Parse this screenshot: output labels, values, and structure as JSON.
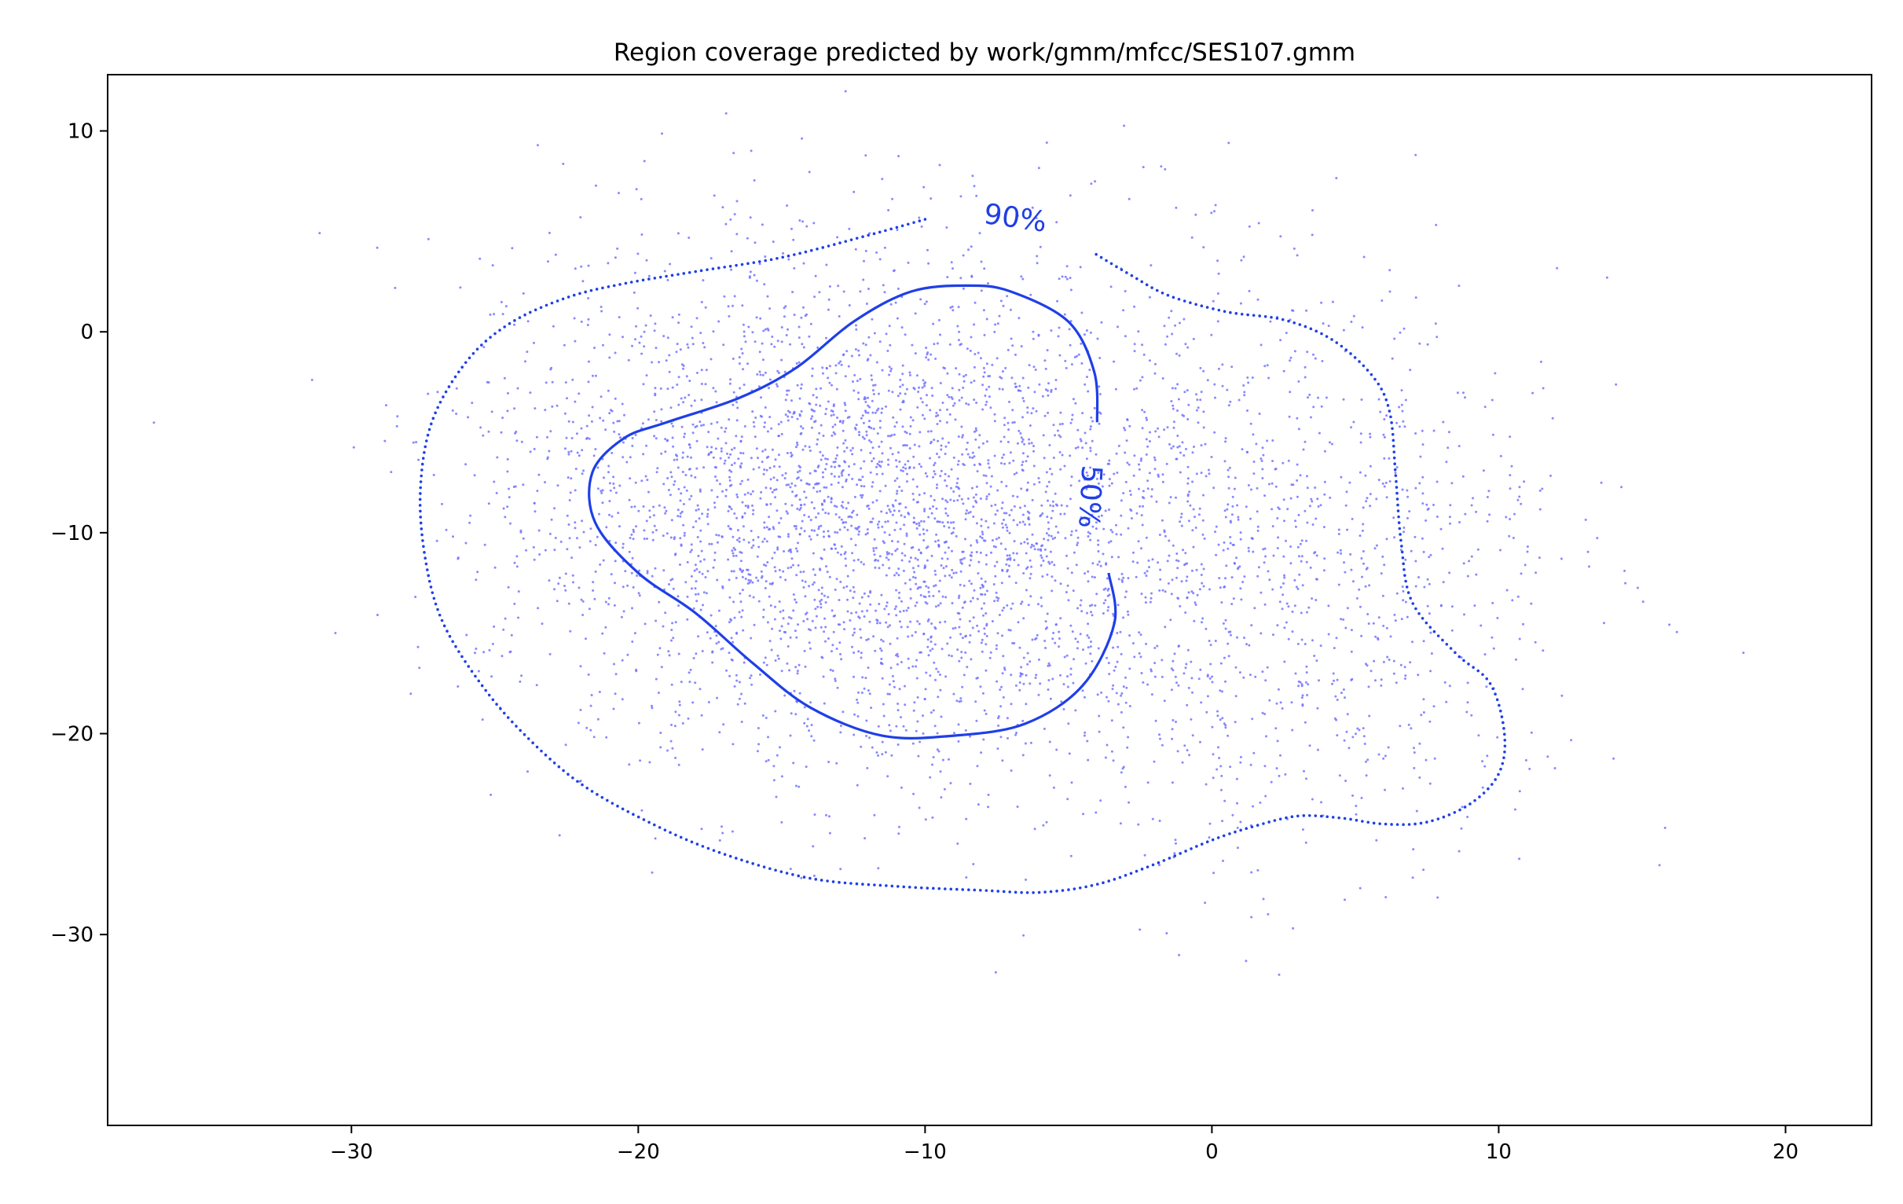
{
  "chart_data": {
    "type": "scatter",
    "title": "Region coverage predicted by work/gmm/mfcc/SES107.gmm",
    "xlabel": "",
    "ylabel": "",
    "xlim": [
      -38.5,
      23.0
    ],
    "ylim": [
      -39.5,
      12.8
    ],
    "x_ticks": [
      -30,
      -20,
      -10,
      0,
      10,
      20
    ],
    "y_ticks": [
      10,
      0,
      -10,
      -20,
      -30
    ],
    "x_tick_labels": [
      "−30",
      "−20",
      "−10",
      "0",
      "10",
      "20"
    ],
    "y_tick_labels": [
      "10",
      "0",
      "−10",
      "−20",
      "−30"
    ],
    "grid": false,
    "legend": "none",
    "point_color": "#6b6bff",
    "contour_color": "#1f3fe6",
    "scatter_summary": {
      "approx_points": 4500,
      "components": [
        {
          "mean": [
            -10.5,
            -9.5
          ],
          "std": [
            5.5,
            6.5
          ],
          "weight": 0.55
        },
        {
          "mean": [
            -18.0,
            -7.0
          ],
          "std": [
            4.5,
            6.0
          ],
          "weight": 0.2
        },
        {
          "mean": [
            2.0,
            -12.0
          ],
          "std": [
            5.0,
            7.0
          ],
          "weight": 0.25
        }
      ]
    },
    "contours": [
      {
        "label": "90%",
        "style": "dotted",
        "points": [
          [
            -10.0,
            5.6
          ],
          [
            -12.0,
            4.8
          ],
          [
            -15.0,
            3.7
          ],
          [
            -18.0,
            3.0
          ],
          [
            -20.5,
            2.4
          ],
          [
            -22.5,
            1.7
          ],
          [
            -24.5,
            0.4
          ],
          [
            -26.0,
            -1.5
          ],
          [
            -27.2,
            -4.5
          ],
          [
            -27.6,
            -8.0
          ],
          [
            -27.4,
            -11.5
          ],
          [
            -26.8,
            -14.5
          ],
          [
            -25.5,
            -17.5
          ],
          [
            -24.0,
            -20.0
          ],
          [
            -22.0,
            -22.5
          ],
          [
            -19.5,
            -24.5
          ],
          [
            -17.0,
            -26.0
          ],
          [
            -14.0,
            -27.2
          ],
          [
            -11.0,
            -27.6
          ],
          [
            -8.0,
            -27.8
          ],
          [
            -6.0,
            -27.9
          ],
          [
            -4.0,
            -27.5
          ],
          [
            -2.0,
            -26.5
          ],
          [
            0.0,
            -25.3
          ],
          [
            1.5,
            -24.6
          ],
          [
            3.0,
            -24.1
          ],
          [
            4.5,
            -24.2
          ],
          [
            6.0,
            -24.5
          ],
          [
            7.5,
            -24.4
          ],
          [
            9.0,
            -23.5
          ],
          [
            10.0,
            -22.0
          ],
          [
            10.2,
            -20.0
          ],
          [
            9.7,
            -17.5
          ],
          [
            8.5,
            -16.0
          ],
          [
            7.0,
            -13.5
          ],
          [
            6.6,
            -10.5
          ],
          [
            6.4,
            -7.0
          ],
          [
            6.2,
            -4.0
          ],
          [
            5.6,
            -2.2
          ],
          [
            4.2,
            -0.4
          ],
          [
            2.5,
            0.6
          ],
          [
            0.5,
            1.0
          ],
          [
            -1.5,
            1.8
          ],
          [
            -2.8,
            2.8
          ],
          [
            -4.2,
            4.0
          ]
        ]
      },
      {
        "label": "50%",
        "style": "solid",
        "points": [
          [
            -4.0,
            -4.5
          ],
          [
            -4.1,
            -2.0
          ],
          [
            -5.0,
            0.5
          ],
          [
            -7.0,
            2.0
          ],
          [
            -8.5,
            2.3
          ],
          [
            -10.5,
            2.0
          ],
          [
            -12.5,
            0.5
          ],
          [
            -14.5,
            -1.8
          ],
          [
            -16.5,
            -3.3
          ],
          [
            -19.0,
            -4.5
          ],
          [
            -20.5,
            -5.3
          ],
          [
            -21.6,
            -7.0
          ],
          [
            -21.5,
            -9.5
          ],
          [
            -20.0,
            -12.0
          ],
          [
            -18.0,
            -14.0
          ],
          [
            -16.0,
            -16.5
          ],
          [
            -14.0,
            -18.7
          ],
          [
            -11.5,
            -20.1
          ],
          [
            -9.0,
            -20.1
          ],
          [
            -6.5,
            -19.5
          ],
          [
            -4.5,
            -17.6
          ],
          [
            -3.4,
            -14.5
          ],
          [
            -3.6,
            -12.0
          ]
        ]
      }
    ]
  }
}
